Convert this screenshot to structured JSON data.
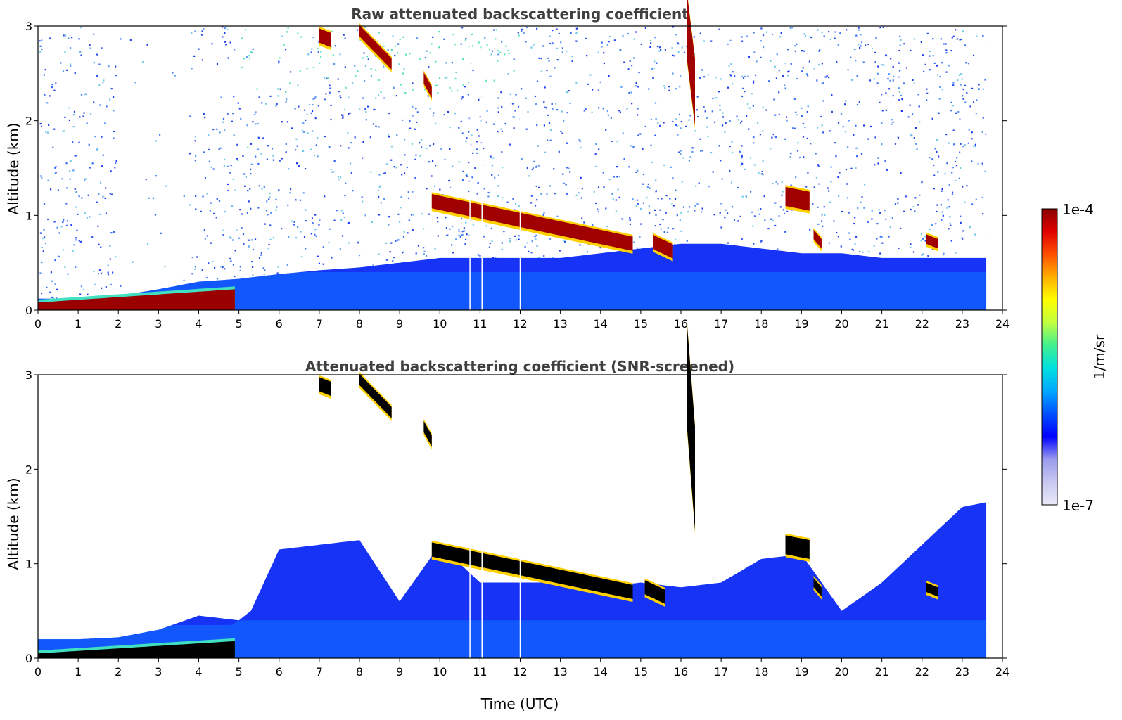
{
  "figure": {
    "colorbar": {
      "label": "1/m/sr",
      "max_label": "1e-4",
      "min_label": "1e-7",
      "range": [
        1e-07,
        0.0001
      ],
      "scale": "log",
      "colormap": [
        "#e8e8f8",
        "#c8c8f0",
        "#9a9aee",
        "#0000ff",
        "#0050ff",
        "#00a8ff",
        "#00e0e0",
        "#40f090",
        "#c0ff40",
        "#ffff00",
        "#ffb000",
        "#ff5000",
        "#e00000",
        "#8b0000"
      ]
    }
  },
  "chart_data": [
    {
      "type": "heatmap",
      "title": "Raw attenuated backscattering coefficient",
      "xlabel": "",
      "ylabel": "Altitude (km)",
      "xlim": [
        0,
        24
      ],
      "ylim": [
        0,
        3
      ],
      "x_ticks": [
        "0",
        "1",
        "2",
        "3",
        "4",
        "5",
        "6",
        "7",
        "8",
        "9",
        "10",
        "11",
        "12",
        "13",
        "14",
        "15",
        "16",
        "17",
        "18",
        "19",
        "20",
        "21",
        "22",
        "23",
        "24"
      ],
      "y_ticks": [
        "0",
        "1",
        "2",
        "3"
      ],
      "data_end_time": 23.6,
      "background": {
        "low_signal_gap": [
          2.0,
          3.8
        ],
        "noise_color": "#2a44ee"
      },
      "boundary_layer_top": [
        [
          0,
          0.12
        ],
        [
          1,
          0.12
        ],
        [
          2,
          0.15
        ],
        [
          3,
          0.22
        ],
        [
          4,
          0.3
        ],
        [
          5,
          0.33
        ],
        [
          6,
          0.38
        ],
        [
          7,
          0.42
        ],
        [
          8,
          0.45
        ],
        [
          9,
          0.5
        ],
        [
          10,
          0.55
        ],
        [
          11,
          0.55
        ],
        [
          12,
          0.55
        ],
        [
          13,
          0.55
        ],
        [
          14,
          0.6
        ],
        [
          15,
          0.65
        ],
        [
          16,
          0.7
        ],
        [
          17,
          0.7
        ],
        [
          18,
          0.65
        ],
        [
          19,
          0.6
        ],
        [
          20,
          0.6
        ],
        [
          21,
          0.55
        ],
        [
          22,
          0.55
        ],
        [
          23,
          0.55
        ],
        [
          23.6,
          0.55
        ]
      ],
      "aerosol_layers": [
        {
          "name": "surface layer",
          "t_start": 0,
          "t_end": 4.9,
          "alt_start": 0.08,
          "alt_end": 0.22,
          "color": "#9a0000"
        }
      ],
      "cloud_layers": [
        {
          "name": "descending cloud",
          "t_start": 9.8,
          "t_end": 14.8,
          "alt_start": 1.15,
          "alt_end": 0.7,
          "thickness": 0.15
        },
        {
          "name": "cloud 15.5h",
          "t_start": 15.3,
          "t_end": 15.8,
          "alt_start": 0.72,
          "alt_end": 0.62,
          "thickness": 0.15
        },
        {
          "name": "cloud 19h",
          "t_start": 18.6,
          "t_end": 19.2,
          "alt_start": 1.2,
          "alt_end": 1.15,
          "thickness": 0.2
        },
        {
          "name": "cloud 19.4h",
          "t_start": 19.3,
          "t_end": 19.5,
          "alt_start": 0.8,
          "alt_end": 0.7,
          "thickness": 0.1
        },
        {
          "name": "cloud 22.3h",
          "t_start": 22.1,
          "t_end": 22.4,
          "alt_start": 0.75,
          "alt_end": 0.7,
          "thickness": 0.1
        },
        {
          "name": "cirrus 7h",
          "t_start": 7.0,
          "t_end": 7.3,
          "alt_start": 2.9,
          "alt_end": 2.85,
          "thickness": 0.15
        },
        {
          "name": "cirrus 8h",
          "t_start": 8.0,
          "t_end": 8.8,
          "alt_start": 2.95,
          "alt_end": 2.6,
          "thickness": 0.12
        },
        {
          "name": "cirrus 9.7h",
          "t_start": 9.6,
          "t_end": 9.8,
          "alt_start": 2.45,
          "alt_end": 2.3,
          "thickness": 0.12
        },
        {
          "name": "precip 16.2h",
          "t_start": 16.15,
          "t_end": 16.35,
          "alt_start": 3.0,
          "alt_end": 2.3,
          "thickness": 0.7
        }
      ],
      "data_gaps": [
        10.75,
        11.05,
        12.0
      ]
    },
    {
      "type": "heatmap",
      "title": "Attenuated backscattering coefficient (SNR-screened)",
      "xlabel": "Time (UTC)",
      "ylabel": "Altitude (km)",
      "xlim": [
        0,
        24
      ],
      "ylim": [
        0,
        3
      ],
      "x_ticks": [
        "0",
        "1",
        "2",
        "3",
        "4",
        "5",
        "6",
        "7",
        "8",
        "9",
        "10",
        "11",
        "12",
        "13",
        "14",
        "15",
        "16",
        "17",
        "18",
        "19",
        "20",
        "21",
        "22",
        "23",
        "24"
      ],
      "y_ticks": [
        "0",
        "1",
        "2",
        "3"
      ],
      "data_end_time": 23.6,
      "boundary_layer_top": [
        [
          0,
          0.2
        ],
        [
          1,
          0.2
        ],
        [
          2,
          0.22
        ],
        [
          3,
          0.3
        ],
        [
          4,
          0.45
        ],
        [
          5,
          0.4
        ],
        [
          5.3,
          0.5
        ],
        [
          6,
          1.15
        ],
        [
          7,
          1.2
        ],
        [
          8,
          1.25
        ],
        [
          9,
          0.6
        ],
        [
          10,
          1.2
        ],
        [
          11,
          0.8
        ],
        [
          12,
          0.8
        ],
        [
          13,
          0.8
        ],
        [
          14,
          0.75
        ],
        [
          15,
          0.8
        ],
        [
          16,
          0.75
        ],
        [
          17,
          0.8
        ],
        [
          18,
          1.05
        ],
        [
          19,
          1.1
        ],
        [
          20,
          0.5
        ],
        [
          21,
          0.8
        ],
        [
          22,
          1.2
        ],
        [
          23,
          1.6
        ],
        [
          23.6,
          1.65
        ]
      ],
      "aerosol_layers": [
        {
          "name": "surface layer",
          "t_start": 0,
          "t_end": 4.9,
          "alt_start": 0.05,
          "alt_end": 0.18,
          "color": "#000000"
        }
      ],
      "cloud_layers": [
        {
          "name": "descending cloud",
          "t_start": 9.8,
          "t_end": 14.8,
          "alt_start": 1.15,
          "alt_end": 0.7,
          "thickness": 0.15
        },
        {
          "name": "cloud 15.5h",
          "t_start": 15.1,
          "t_end": 15.6,
          "alt_start": 0.75,
          "alt_end": 0.65,
          "thickness": 0.15
        },
        {
          "name": "cloud 19h",
          "t_start": 18.6,
          "t_end": 19.2,
          "alt_start": 1.2,
          "alt_end": 1.15,
          "thickness": 0.2
        },
        {
          "name": "cloud 19.4h",
          "t_start": 19.3,
          "t_end": 19.5,
          "alt_start": 0.8,
          "alt_end": 0.7,
          "thickness": 0.1
        },
        {
          "name": "cloud 22.3h",
          "t_start": 22.1,
          "t_end": 22.4,
          "alt_start": 0.75,
          "alt_end": 0.7,
          "thickness": 0.1
        },
        {
          "name": "cirrus 7h",
          "t_start": 7.0,
          "t_end": 7.3,
          "alt_start": 2.9,
          "alt_end": 2.85,
          "thickness": 0.15
        },
        {
          "name": "cirrus 8h",
          "t_start": 8.0,
          "t_end": 8.8,
          "alt_start": 2.95,
          "alt_end": 2.6,
          "thickness": 0.12
        },
        {
          "name": "cirrus 9.7h",
          "t_start": 9.6,
          "t_end": 9.8,
          "alt_start": 2.45,
          "alt_end": 2.3,
          "thickness": 0.12
        },
        {
          "name": "precip 16.2h",
          "t_start": 16.15,
          "t_end": 16.35,
          "alt_start": 3.0,
          "alt_end": 1.9,
          "thickness": 1.1
        }
      ],
      "data_gaps": [
        10.75,
        11.05,
        12.0
      ]
    }
  ]
}
